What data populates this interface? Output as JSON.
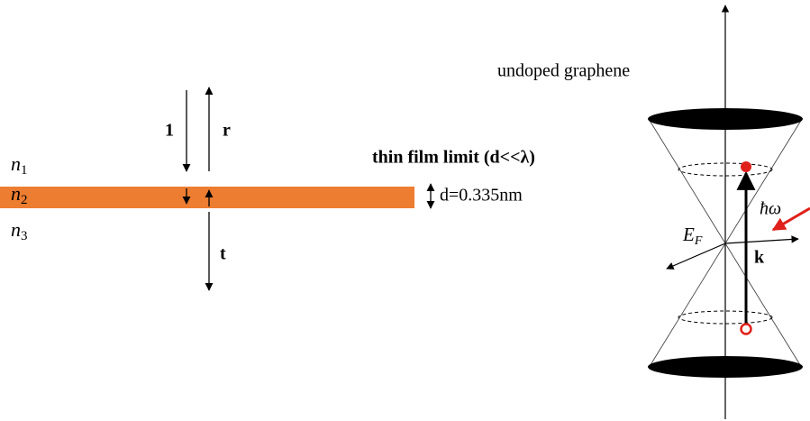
{
  "film": {
    "incident_label": "1",
    "reflected_label": "r",
    "transmitted_label": "t",
    "media": [
      {
        "symbol": "n",
        "subscript": "1"
      },
      {
        "symbol": "n",
        "subscript": "2"
      },
      {
        "symbol": "n",
        "subscript": "3"
      }
    ],
    "limit_label": "thin film limit (d<<λ)",
    "thickness_label": "d=0.335nm"
  },
  "graphene": {
    "title": "undoped graphene",
    "photon_label": "ħω",
    "fermi_label": {
      "symbol": "E",
      "subscript": "F"
    },
    "momentum_label": "k"
  }
}
